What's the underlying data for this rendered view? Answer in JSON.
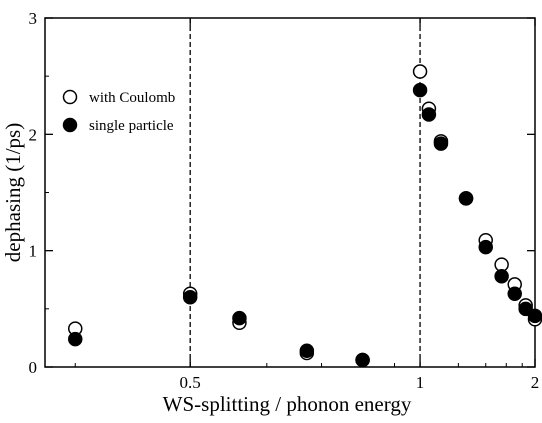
{
  "chart_data": {
    "type": "scatter",
    "xlabel": "WS-splitting / phonon energy",
    "ylabel": "dephasing  (1/ps)",
    "xscale": "reciprocal",
    "xlim": [
      0.38,
      2
    ],
    "ylim": [
      0,
      3
    ],
    "x_ticks": [
      {
        "value": 0.5,
        "label": "0.5"
      },
      {
        "value": 1,
        "label": "1"
      },
      {
        "value": 2,
        "label": "2"
      }
    ],
    "y_ticks": [
      {
        "value": 0,
        "label": "0"
      },
      {
        "value": 1,
        "label": "1"
      },
      {
        "value": 2,
        "label": "2"
      },
      {
        "value": 3,
        "label": "3"
      }
    ],
    "reference_lines_x": [
      0.5,
      1
    ],
    "legend": {
      "placement": "upper-left"
    },
    "series": [
      {
        "name": "with Coulomb",
        "marker": "open-circle",
        "x": [
          0.4,
          0.5,
          0.56,
          0.67,
          0.8,
          1.0,
          1.04,
          1.1,
          1.25,
          1.4,
          1.55,
          1.7,
          1.85,
          2.0
        ],
        "y": [
          0.33,
          0.63,
          0.38,
          0.12,
          0.06,
          2.54,
          2.22,
          1.94,
          1.45,
          1.09,
          0.88,
          0.71,
          0.53,
          0.41
        ]
      },
      {
        "name": "single particle",
        "marker": "filled-circle",
        "x": [
          0.4,
          0.5,
          0.56,
          0.67,
          0.8,
          1.0,
          1.04,
          1.1,
          1.25,
          1.4,
          1.55,
          1.7,
          1.85,
          2.0
        ],
        "y": [
          0.24,
          0.6,
          0.42,
          0.14,
          0.06,
          2.38,
          2.17,
          1.92,
          1.45,
          1.03,
          0.78,
          0.63,
          0.5,
          0.44
        ]
      }
    ],
    "colors": {
      "marker": "#000000",
      "background": "#ffffff"
    }
  }
}
